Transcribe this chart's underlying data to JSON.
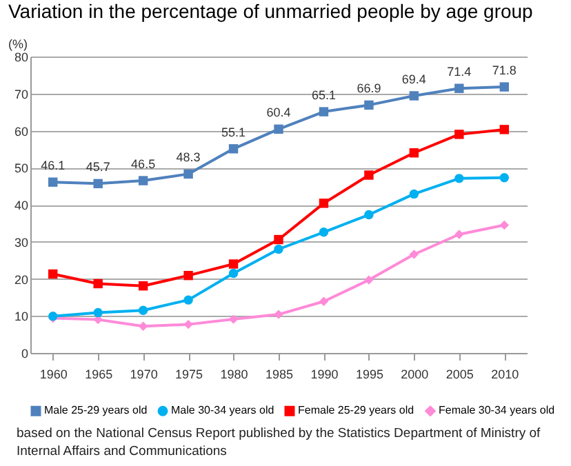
{
  "chart_data": {
    "type": "line",
    "title": "Variation in the percentage of unmarried people by age group",
    "ylabel": "(%)",
    "categories": [
      "1960",
      "1965",
      "1970",
      "1975",
      "1980",
      "1985",
      "1990",
      "1995",
      "2000",
      "2005",
      "2010"
    ],
    "series": [
      {
        "name": "Male 25-29 years old",
        "color": "#4f81bd",
        "marker": "square",
        "values": [
          46.1,
          45.7,
          46.5,
          48.3,
          55.1,
          60.4,
          65.1,
          66.9,
          69.4,
          71.4,
          71.8
        ],
        "data_labels": true
      },
      {
        "name": "Male 30-34 years old",
        "color": "#00b0f0",
        "marker": "circle",
        "values": [
          9.9,
          10.9,
          11.5,
          14.3,
          21.5,
          28.0,
          32.6,
          37.3,
          42.9,
          47.1,
          47.3
        ]
      },
      {
        "name": "Female 25-29 years old",
        "color": "#ff0000",
        "marker": "square",
        "values": [
          21.3,
          18.7,
          18.1,
          20.9,
          24.0,
          30.6,
          40.4,
          48.0,
          54.0,
          59.0,
          60.3
        ]
      },
      {
        "name": "Female 30-34 years old",
        "color": "#ff8ad8",
        "marker": "diamond",
        "values": [
          9.4,
          9.0,
          7.2,
          7.7,
          9.1,
          10.4,
          13.9,
          19.7,
          26.6,
          32.0,
          34.5
        ]
      }
    ],
    "ylim": [
      0,
      80
    ],
    "yticks": [
      0,
      10,
      20,
      30,
      40,
      50,
      60,
      70,
      80
    ],
    "grid": "y",
    "legend": "bottom",
    "annotations": [
      "based on the National Census Report published by the Statistics Department of Ministry of Internal Affairs and Communications"
    ]
  }
}
